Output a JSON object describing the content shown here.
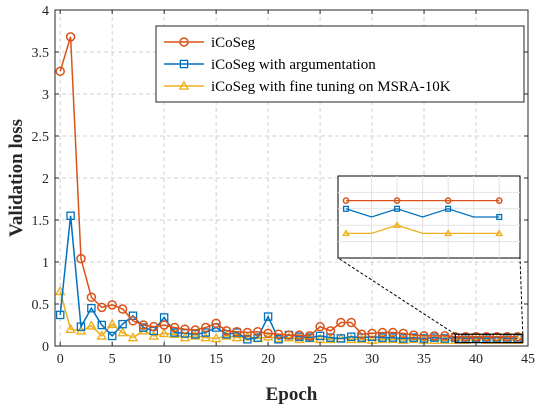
{
  "chart_data": {
    "type": "line",
    "xlabel": "Epoch",
    "ylabel": "Validation loss",
    "xlim": [
      -0.5,
      45
    ],
    "ylim": [
      0,
      4
    ],
    "xticks": [
      "0",
      "5",
      "10",
      "15",
      "20",
      "25",
      "30",
      "35",
      "40",
      "45"
    ],
    "yticks": [
      "0",
      "0.5",
      "1",
      "1.5",
      "2",
      "2.5",
      "3",
      "3.5",
      "4"
    ],
    "grid": true,
    "legend_position": "top-right",
    "series": [
      {
        "name": "iCoSeg",
        "color": "#D95319",
        "marker": "circle",
        "x": [
          0,
          1,
          2,
          3,
          4,
          5,
          6,
          7,
          8,
          9,
          10,
          11,
          12,
          13,
          14,
          15,
          16,
          17,
          18,
          19,
          20,
          21,
          22,
          23,
          24,
          25,
          26,
          27,
          28,
          29,
          30,
          31,
          32,
          33,
          34,
          35,
          36,
          37,
          38,
          39,
          40,
          41,
          42,
          43,
          44
        ],
        "values": [
          3.27,
          3.68,
          1.04,
          0.58,
          0.46,
          0.49,
          0.44,
          0.3,
          0.25,
          0.23,
          0.25,
          0.22,
          0.2,
          0.19,
          0.22,
          0.27,
          0.18,
          0.17,
          0.16,
          0.17,
          0.15,
          0.14,
          0.13,
          0.13,
          0.12,
          0.23,
          0.18,
          0.28,
          0.28,
          0.14,
          0.15,
          0.16,
          0.16,
          0.15,
          0.13,
          0.12,
          0.12,
          0.12,
          0.11,
          0.11,
          0.11,
          0.11,
          0.11,
          0.11,
          0.11
        ]
      },
      {
        "name": "iCoSeg with argumentation",
        "color": "#0072BD",
        "marker": "square",
        "x": [
          0,
          1,
          2,
          3,
          4,
          5,
          6,
          7,
          8,
          9,
          10,
          11,
          12,
          13,
          14,
          15,
          16,
          17,
          18,
          19,
          20,
          21,
          22,
          23,
          24,
          25,
          26,
          27,
          28,
          29,
          30,
          31,
          32,
          33,
          34,
          35,
          36,
          37,
          38,
          39,
          40,
          41,
          42,
          43,
          44
        ],
        "values": [
          0.37,
          1.55,
          0.23,
          0.45,
          0.25,
          0.12,
          0.26,
          0.36,
          0.22,
          0.18,
          0.34,
          0.16,
          0.15,
          0.14,
          0.16,
          0.22,
          0.14,
          0.16,
          0.08,
          0.1,
          0.35,
          0.08,
          0.13,
          0.11,
          0.1,
          0.12,
          0.1,
          0.09,
          0.11,
          0.1,
          0.11,
          0.1,
          0.1,
          0.09,
          0.1,
          0.09,
          0.1,
          0.09,
          0.1,
          0.09,
          0.1,
          0.09,
          0.1,
          0.09,
          0.09
        ]
      },
      {
        "name": "iCoSeg with fine tuning on MSRA-10K",
        "color": "#EDB120",
        "marker": "triangle",
        "x": [
          0,
          1,
          2,
          3,
          4,
          5,
          6,
          7,
          8,
          9,
          10,
          11,
          12,
          13,
          14,
          15,
          16,
          17,
          18,
          19,
          20,
          21,
          22,
          23,
          24,
          25,
          26,
          27,
          28,
          29,
          30,
          31,
          32,
          33,
          34,
          35,
          36,
          37,
          38,
          39,
          40,
          41,
          42,
          43,
          44
        ],
        "values": [
          0.65,
          0.2,
          0.18,
          0.24,
          0.12,
          0.26,
          0.16,
          0.1,
          0.18,
          0.12,
          0.15,
          0.14,
          0.1,
          0.12,
          0.1,
          0.09,
          0.12,
          0.1,
          0.11,
          0.09,
          0.11,
          0.09,
          0.1,
          0.08,
          0.09,
          0.08,
          0.08,
          0.09,
          0.08,
          0.08,
          0.07,
          0.08,
          0.08,
          0.07,
          0.08,
          0.07,
          0.07,
          0.07,
          0.07,
          0.07,
          0.08,
          0.07,
          0.07,
          0.07,
          0.07
        ]
      }
    ],
    "inset": {
      "x_range": [
        38,
        44.5
      ],
      "y_range": [
        0.04,
        0.14
      ]
    }
  }
}
